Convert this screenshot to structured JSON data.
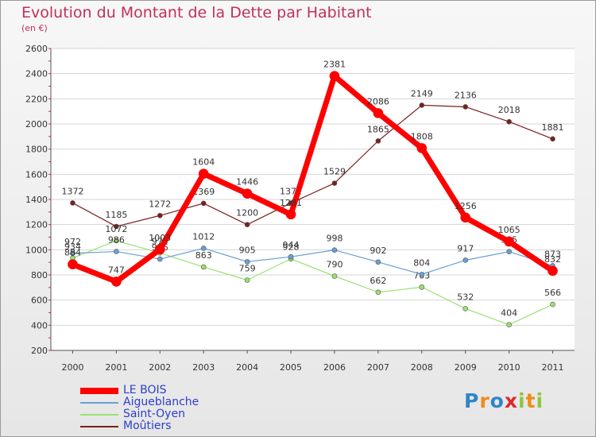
{
  "chart_data": {
    "type": "line",
    "title": "Evolution du Montant de la Dette par Habitant",
    "subtitle": "(en €)",
    "x": [
      "2000",
      "2001",
      "2002",
      "2003",
      "2004",
      "2005",
      "2006",
      "2007",
      "2008",
      "2009",
      "2010",
      "2011"
    ],
    "ylim": [
      200,
      2600
    ],
    "yticks": [
      200,
      400,
      600,
      800,
      1000,
      1200,
      1400,
      1600,
      1800,
      2000,
      2200,
      2400,
      2600
    ],
    "grid": "horizontal",
    "legend_position": "bottom-left",
    "series": [
      {
        "name": "Moûtiers",
        "color": "#7a1f1f",
        "width": 1.2,
        "values": [
          1372,
          1185,
          1272,
          1369,
          1200,
          1371,
          1529,
          1865,
          2149,
          2136,
          2018,
          1881
        ]
      },
      {
        "name": "Saint-Oyen",
        "color": "#9be072",
        "width": 1.2,
        "values": [
          934,
          1072,
          975,
          863,
          759,
          928,
          790,
          662,
          703,
          532,
          404,
          566
        ]
      },
      {
        "name": "Aigueblanche",
        "color": "#6aa0d4",
        "width": 1.2,
        "values": [
          972,
          986,
          926,
          1012,
          905,
          944,
          998,
          902,
          804,
          917,
          985,
          873
        ]
      },
      {
        "name": "LE BOIS",
        "color": "#ff0000",
        "width": 7,
        "values": [
          884,
          747,
          1003,
          1604,
          1446,
          1281,
          2381,
          2086,
          1808,
          1256,
          1065,
          832
        ]
      }
    ]
  },
  "legend": {
    "items": [
      {
        "name": "LE BOIS",
        "color": "#ff0000"
      },
      {
        "name": "Aigueblanche",
        "color": "#6aa0d4"
      },
      {
        "name": "Saint-Oyen",
        "color": "#9be072"
      },
      {
        "name": "Moûtiers",
        "color": "#7a1f1f"
      }
    ]
  },
  "logo": {
    "letters": [
      {
        "char": "P",
        "color": "#2f86c8"
      },
      {
        "char": "r",
        "color": "#f08a1c"
      },
      {
        "char": "o",
        "color": "#2f86c8"
      },
      {
        "char": "x",
        "color": "#e0282e"
      },
      {
        "char": "i",
        "color": "#8cc63f"
      },
      {
        "char": "t",
        "color": "#f08a1c"
      },
      {
        "char": "i",
        "color": "#8cc63f"
      }
    ]
  }
}
